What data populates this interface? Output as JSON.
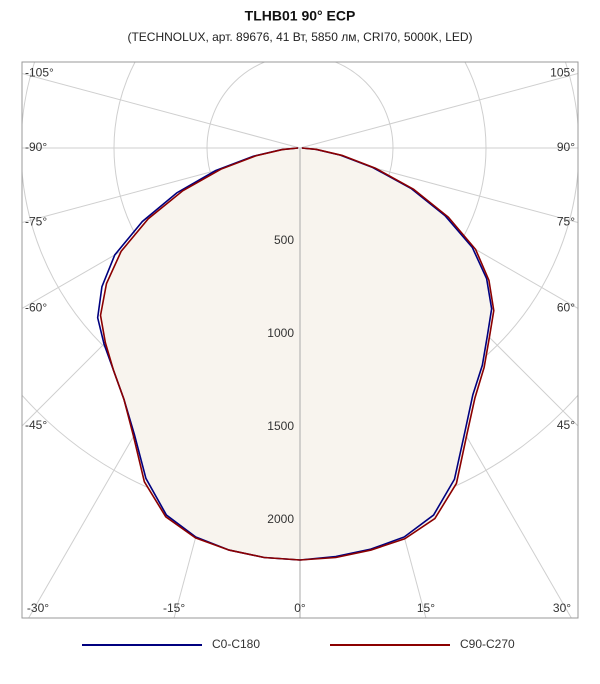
{
  "chart_data": {
    "type": "polar",
    "title": "TLHB01 90° ECP",
    "subtitle": "(TECHNOLUX, арт. 89676, 41 Вт, 5850 лм, CRI70, 5000K, LED)",
    "x": [
      -90,
      -85,
      -80,
      -75,
      -70,
      -65,
      -60,
      -55,
      -50,
      -45,
      -40,
      -35,
      -30,
      -25,
      -20,
      -15,
      -10,
      -5,
      0,
      5,
      10,
      15,
      20,
      25,
      30,
      35,
      40,
      45,
      50,
      55,
      60,
      65,
      70,
      75,
      80,
      85,
      90
    ],
    "series": [
      {
        "name": "C0-C180",
        "color": "#00007f",
        "values": [
          10,
          100,
          255,
          470,
          705,
          935,
          1150,
          1300,
          1420,
          1490,
          1560,
          1650,
          1780,
          1960,
          2100,
          2165,
          2195,
          2210,
          2215,
          2205,
          2190,
          2165,
          2100,
          1965,
          1770,
          1620,
          1525,
          1425,
          1345,
          1225,
          1070,
          860,
          635,
          405,
          220,
          85,
          10
        ]
      },
      {
        "name": "C90-C270",
        "color": "#8b0000",
        "values": [
          10,
          95,
          240,
          440,
          670,
          900,
          1110,
          1270,
          1400,
          1480,
          1560,
          1650,
          1790,
          1980,
          2110,
          2170,
          2195,
          2210,
          2215,
          2210,
          2195,
          2175,
          2120,
          1990,
          1790,
          1640,
          1540,
          1440,
          1360,
          1240,
          1090,
          880,
          650,
          420,
          230,
          90,
          10
        ]
      }
    ],
    "rlim": [
      0,
      2500
    ],
    "rticks": [
      500,
      1000,
      1500,
      2000
    ],
    "angle_ticks": [
      {
        "value": -105,
        "label": "-105°"
      },
      {
        "value": -90,
        "label": "-90°"
      },
      {
        "value": -75,
        "label": "-75°"
      },
      {
        "value": -60,
        "label": "-60°"
      },
      {
        "value": -45,
        "label": "-45°"
      },
      {
        "value": -30,
        "label": "-30°"
      },
      {
        "value": -15,
        "label": "-15°"
      },
      {
        "value": 0,
        "label": "0°"
      },
      {
        "value": 15,
        "label": "15°"
      },
      {
        "value": 30,
        "label": "30°"
      },
      {
        "value": 45,
        "label": "45°"
      },
      {
        "value": 60,
        "label": "60°"
      },
      {
        "value": 75,
        "label": "75°"
      },
      {
        "value": 90,
        "label": "90°"
      },
      {
        "value": 105,
        "label": "105°"
      }
    ],
    "fill_color": "#f8f4ee",
    "grid": true
  }
}
